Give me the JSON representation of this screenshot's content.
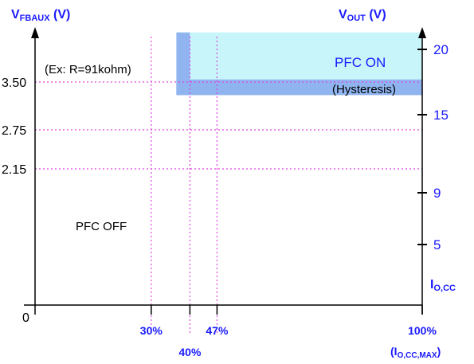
{
  "chart_data": {
    "type": "area",
    "title": "",
    "left_axis": {
      "title_main": "V",
      "title_sub": "FBAUX",
      "title_unit": " (V)",
      "ticks": [
        {
          "value": 3.5,
          "label": "3.50"
        },
        {
          "value": 2.75,
          "label": "2.75"
        },
        {
          "value": 2.15,
          "label": "2.15"
        }
      ],
      "origin_label": "0"
    },
    "right_axis": {
      "title_main": "V",
      "title_sub": "OUT",
      "title_unit": " (V)",
      "ticks": [
        {
          "value": 20,
          "label": "20"
        },
        {
          "value": 15,
          "label": "15"
        },
        {
          "value": 9,
          "label": "9"
        },
        {
          "value": 5,
          "label": "5"
        }
      ],
      "bottom_label_main": "I",
      "bottom_label_sub": "O,CC"
    },
    "x_axis": {
      "ticks": [
        {
          "value": 30,
          "label": "30%"
        },
        {
          "value": 40,
          "label": "40%"
        },
        {
          "value": 47,
          "label": "47%"
        },
        {
          "value": 100,
          "label": "100%"
        }
      ],
      "end_label_main": "(I",
      "end_label_sub": "O,CC,MAX",
      "end_label_close": ")"
    },
    "regions": [
      {
        "name": "PFC ON",
        "x_from": 40,
        "x_to": 100,
        "vout_from": 17.7,
        "vout_to": 21.3,
        "color": "#c8f5fa"
      },
      {
        "name": "Hysteresis",
        "label": "(Hysteresis)",
        "x_from": 36.5,
        "x_to": 100,
        "vout_from": 16.5,
        "vout_to": 17.7,
        "color": "#8fb4f0"
      },
      {
        "name": "hysteresis-x",
        "x_from": 36.5,
        "x_to": 40,
        "vout_from": 16.5,
        "vout_to": 21.3,
        "color": "#8fb4f0"
      }
    ],
    "annotations": {
      "pfc_on": "PFC ON",
      "pfc_off": "PFC OFF",
      "example": "(Ex: R=91kohm)"
    },
    "grid": "dotted reference lines at 2.15, 2.75, 3.50 V and 30%, 40%, 47%",
    "colors": {
      "axis": "#000000",
      "accent": "#1a1aff",
      "guide": "#e040e0",
      "pfc_on_fill": "#c8f5fa",
      "hysteresis_fill": "#8fb4f0"
    }
  }
}
